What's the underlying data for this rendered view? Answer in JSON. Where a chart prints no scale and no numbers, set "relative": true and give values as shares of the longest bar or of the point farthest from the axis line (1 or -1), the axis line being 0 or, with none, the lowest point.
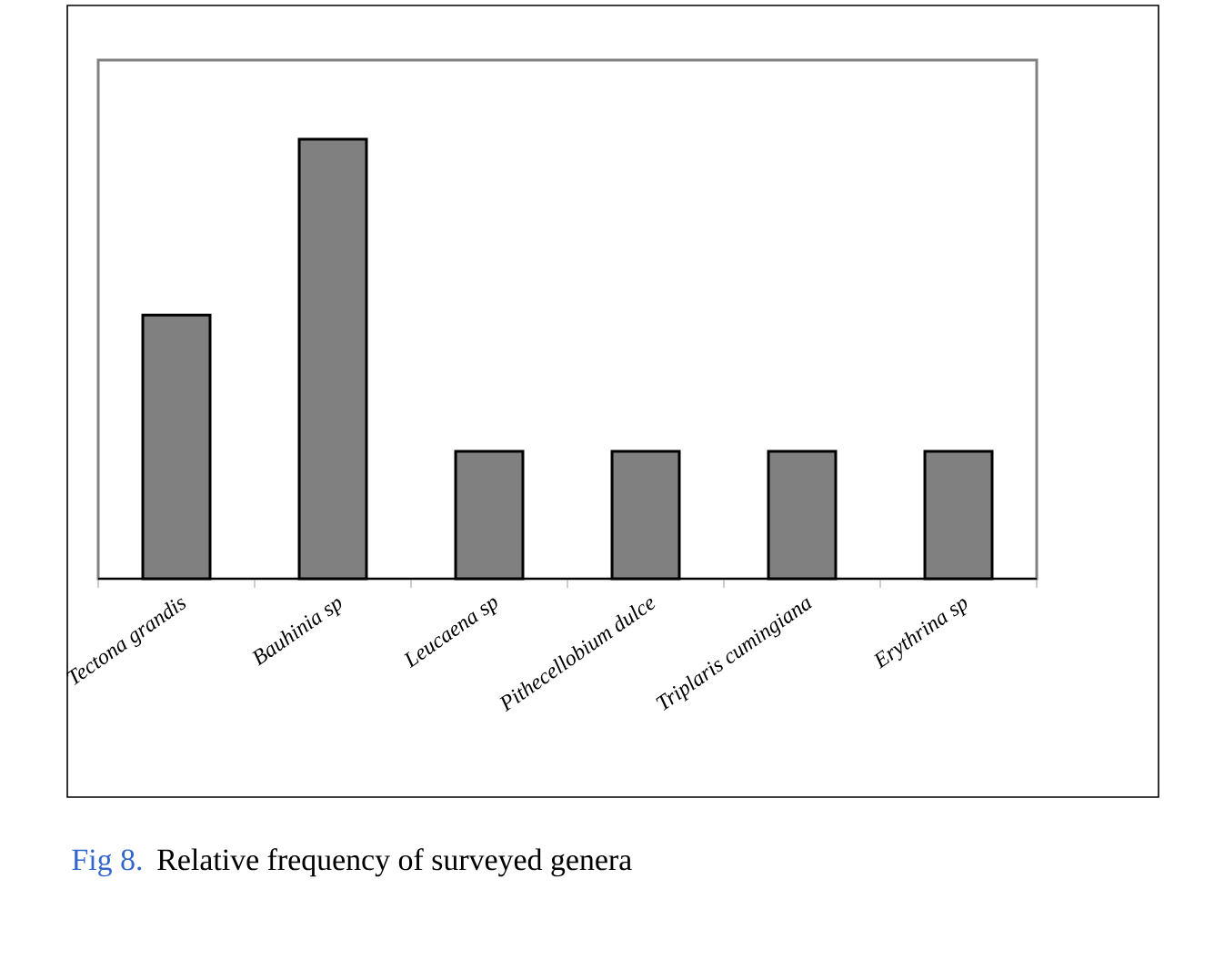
{
  "chart_data": {
    "type": "bar",
    "relative": true,
    "color": "#808080",
    "categories": [
      "Tectona grandis",
      "Bauhinia sp",
      "Leucaena sp",
      "Pithecellobium dulce",
      "Triplaris cumingiana",
      "Erythrina sp"
    ],
    "values": [
      0.6,
      1,
      0.29,
      0.29,
      0.29,
      0.29
    ],
    "annotations": [
      "Fig 8.",
      "Relative frequency of surveyed genera"
    ]
  }
}
